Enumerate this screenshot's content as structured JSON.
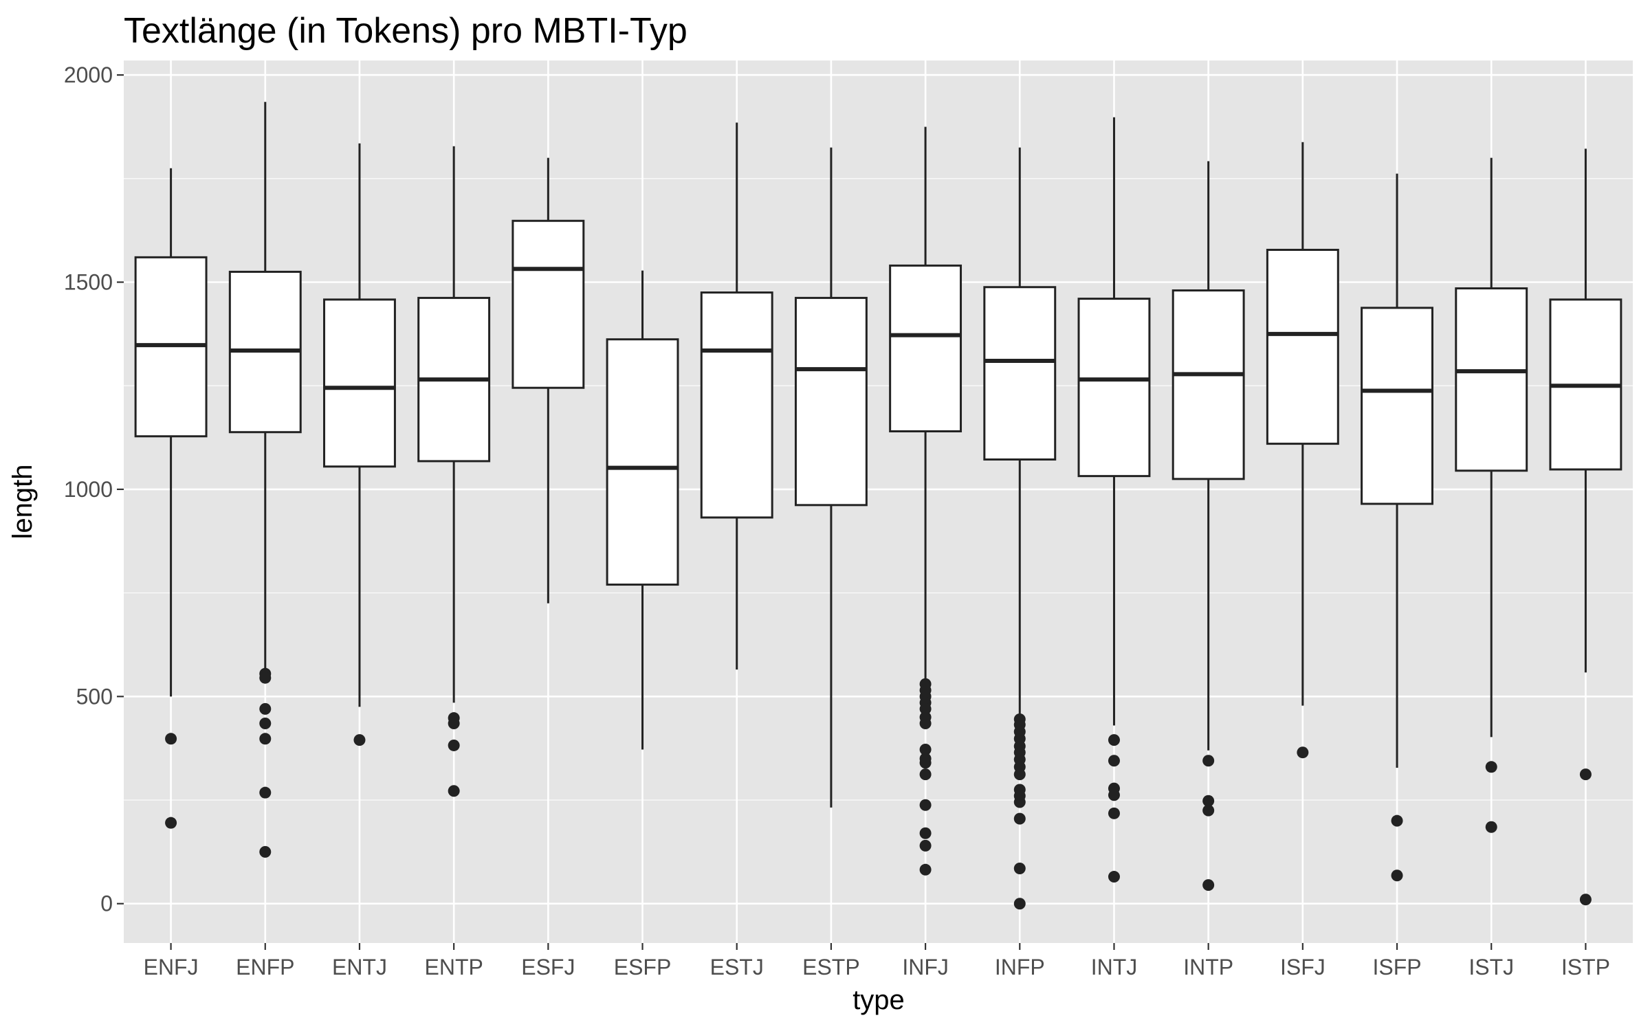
{
  "chart_data": {
    "type": "box",
    "title": "Textlänge (in Tokens) pro MBTI-Typ",
    "xlabel": "type",
    "ylabel": "length",
    "ylim": [
      -95,
      2035
    ],
    "yticks": [
      0,
      500,
      1000,
      1500,
      2000
    ],
    "grid": true,
    "legend": "none",
    "colors": {
      "panel_background": "#e5e5e5",
      "grid_major": "#ffffff",
      "box_fill": "#ffffff",
      "box_stroke": "#222222",
      "outlier": "#222222",
      "tick_text": "#4d4d4d"
    },
    "categories": [
      "ENFJ",
      "ENFP",
      "ENTJ",
      "ENTP",
      "ESFJ",
      "ESFP",
      "ESTJ",
      "ESTP",
      "INFJ",
      "INFP",
      "INTJ",
      "INTP",
      "ISFJ",
      "ISFP",
      "ISTJ",
      "ISTP"
    ],
    "boxes": [
      {
        "category": "ENFJ",
        "lower_whisker": 500,
        "q1": 1128,
        "median": 1348,
        "q3": 1560,
        "upper_whisker": 1775,
        "outliers": [
          398,
          195
        ]
      },
      {
        "category": "ENFP",
        "lower_whisker": 560,
        "q1": 1138,
        "median": 1335,
        "q3": 1525,
        "upper_whisker": 1935,
        "outliers": [
          555,
          545,
          470,
          435,
          398,
          268,
          125
        ]
      },
      {
        "category": "ENTJ",
        "lower_whisker": 475,
        "q1": 1055,
        "median": 1245,
        "q3": 1458,
        "upper_whisker": 1835,
        "outliers": [
          395
        ]
      },
      {
        "category": "ENTP",
        "lower_whisker": 485,
        "q1": 1068,
        "median": 1265,
        "q3": 1462,
        "upper_whisker": 1828,
        "outliers": [
          448,
          435,
          382,
          272
        ]
      },
      {
        "category": "ESFJ",
        "lower_whisker": 725,
        "q1": 1245,
        "median": 1532,
        "q3": 1648,
        "upper_whisker": 1800,
        "outliers": []
      },
      {
        "category": "ESFP",
        "lower_whisker": 372,
        "q1": 770,
        "median": 1052,
        "q3": 1362,
        "upper_whisker": 1528,
        "outliers": []
      },
      {
        "category": "ESTJ",
        "lower_whisker": 565,
        "q1": 932,
        "median": 1335,
        "q3": 1475,
        "upper_whisker": 1885,
        "outliers": []
      },
      {
        "category": "ESTP",
        "lower_whisker": 232,
        "q1": 962,
        "median": 1290,
        "q3": 1462,
        "upper_whisker": 1825,
        "outliers": []
      },
      {
        "category": "INFJ",
        "lower_whisker": 540,
        "q1": 1140,
        "median": 1372,
        "q3": 1540,
        "upper_whisker": 1875,
        "outliers": [
          530,
          515,
          500,
          485,
          470,
          450,
          435,
          372,
          350,
          340,
          312,
          238,
          170,
          140,
          82
        ]
      },
      {
        "category": "INFP",
        "lower_whisker": 450,
        "q1": 1072,
        "median": 1310,
        "q3": 1488,
        "upper_whisker": 1825,
        "outliers": [
          445,
          432,
          415,
          398,
          380,
          365,
          348,
          330,
          312,
          275,
          260,
          245,
          205,
          85,
          0
        ]
      },
      {
        "category": "INTJ",
        "lower_whisker": 430,
        "q1": 1032,
        "median": 1265,
        "q3": 1460,
        "upper_whisker": 1898,
        "outliers": [
          395,
          345,
          278,
          262,
          218,
          65
        ]
      },
      {
        "category": "INTP",
        "lower_whisker": 370,
        "q1": 1025,
        "median": 1278,
        "q3": 1480,
        "upper_whisker": 1792,
        "outliers": [
          345,
          248,
          225,
          45
        ]
      },
      {
        "category": "ISFJ",
        "lower_whisker": 478,
        "q1": 1110,
        "median": 1375,
        "q3": 1578,
        "upper_whisker": 1838,
        "outliers": [
          365
        ]
      },
      {
        "category": "ISFP",
        "lower_whisker": 328,
        "q1": 965,
        "median": 1238,
        "q3": 1438,
        "upper_whisker": 1762,
        "outliers": [
          200,
          68
        ]
      },
      {
        "category": "ISTJ",
        "lower_whisker": 402,
        "q1": 1045,
        "median": 1285,
        "q3": 1485,
        "upper_whisker": 1800,
        "outliers": [
          330,
          185
        ]
      },
      {
        "category": "ISTP",
        "lower_whisker": 558,
        "q1": 1048,
        "median": 1250,
        "q3": 1458,
        "upper_whisker": 1822,
        "outliers": [
          312,
          10
        ]
      }
    ]
  }
}
